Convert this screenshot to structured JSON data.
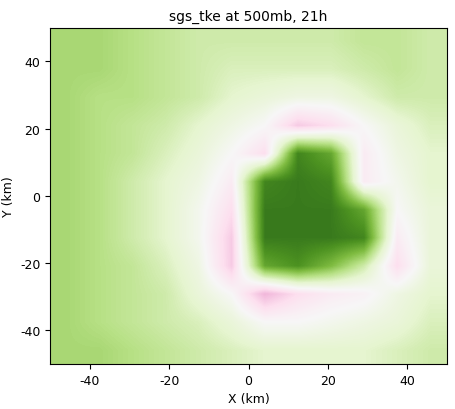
{
  "chart_data": {
    "type": "heatmap",
    "title": "sgs_tke at 500mb, 21h",
    "x_label": "X (km)",
    "y_label": "Y (km)",
    "xlim": [
      -50,
      50
    ],
    "ylim": [
      -50,
      50
    ],
    "xticks": [
      -40,
      -20,
      0,
      20,
      40
    ],
    "yticks": [
      -40,
      -20,
      0,
      20,
      40
    ],
    "color": "PiYG",
    "color_range": [
      -1,
      1
    ],
    "cells": [
      [
        0.45,
        0.45,
        0.4,
        0.35,
        0.3,
        0.25,
        0.2,
        0.2,
        0.2,
        0.2,
        0.25,
        0.3
      ],
      [
        0.45,
        0.4,
        0.35,
        0.3,
        0.25,
        0.15,
        0.0,
        0.0,
        0.05,
        0.1,
        0.15,
        0.25
      ],
      [
        0.45,
        0.4,
        0.35,
        0.3,
        0.15,
        0.0,
        -0.4,
        -0.2,
        -0.1,
        -0.05,
        0.1,
        0.2
      ],
      [
        0.45,
        0.4,
        0.35,
        0.25,
        0.1,
        -0.3,
        0.7,
        0.8,
        0.6,
        0.3,
        -0.2,
        0.15
      ],
      [
        0.45,
        0.4,
        0.3,
        0.2,
        0.05,
        -0.3,
        0.9,
        0.9,
        0.9,
        0.85,
        -0.1,
        0.15
      ],
      [
        0.45,
        0.4,
        0.3,
        0.2,
        0.05,
        -0.2,
        0.9,
        0.9,
        0.9,
        0.7,
        0.0,
        0.15
      ],
      [
        0.45,
        0.4,
        0.3,
        0.2,
        0.1,
        -0.1,
        0.85,
        0.9,
        0.85,
        -0.1,
        0.05,
        0.2
      ],
      [
        0.45,
        0.4,
        0.35,
        0.25,
        0.15,
        0.0,
        -0.2,
        0.85,
        0.7,
        -0.1,
        0.1,
        0.2
      ],
      [
        0.45,
        0.4,
        0.35,
        0.3,
        0.2,
        0.1,
        0.0,
        -0.3,
        -0.2,
        0.0,
        0.15,
        0.25
      ],
      [
        0.45,
        0.4,
        0.4,
        0.35,
        0.3,
        0.2,
        0.15,
        0.1,
        0.1,
        0.2,
        0.3,
        0.3
      ],
      [
        0.45,
        0.45,
        0.4,
        0.35,
        0.3,
        0.25,
        0.25,
        0.25,
        0.25,
        0.3,
        0.35,
        0.3
      ],
      [
        0.45,
        0.45,
        0.4,
        0.35,
        0.3,
        0.3,
        0.3,
        0.3,
        0.3,
        0.35,
        0.35,
        0.3
      ]
    ]
  }
}
